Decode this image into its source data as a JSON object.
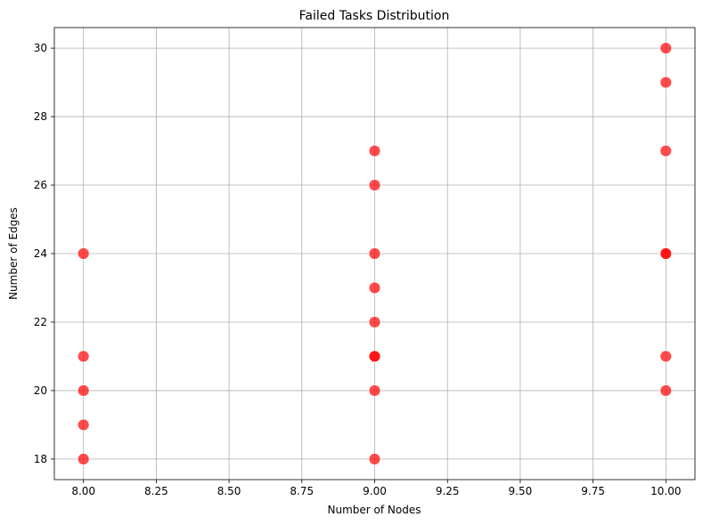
{
  "chart_data": {
    "type": "scatter",
    "title": "Failed Tasks Distribution",
    "xlabel": "Number of Nodes",
    "ylabel": "Number of Edges",
    "xlim": [
      7.9,
      10.1
    ],
    "ylim": [
      17.4,
      30.6
    ],
    "xticks": [
      8.0,
      8.25,
      8.5,
      8.75,
      9.0,
      9.25,
      9.5,
      9.75,
      10.0
    ],
    "xtick_labels": [
      "8.00",
      "8.25",
      "8.50",
      "8.75",
      "9.00",
      "9.25",
      "9.50",
      "9.75",
      "10.00"
    ],
    "yticks": [
      18,
      20,
      22,
      24,
      26,
      28,
      30
    ],
    "ytick_labels": [
      "18",
      "20",
      "22",
      "24",
      "26",
      "28",
      "30"
    ],
    "grid": true,
    "marker_color": "#ff0000",
    "points": [
      {
        "x": 8,
        "y": 18
      },
      {
        "x": 8,
        "y": 19
      },
      {
        "x": 8,
        "y": 20
      },
      {
        "x": 8,
        "y": 21
      },
      {
        "x": 8,
        "y": 24
      },
      {
        "x": 9,
        "y": 18
      },
      {
        "x": 9,
        "y": 20
      },
      {
        "x": 9,
        "y": 21
      },
      {
        "x": 9,
        "y": 21
      },
      {
        "x": 9,
        "y": 22
      },
      {
        "x": 9,
        "y": 23
      },
      {
        "x": 9,
        "y": 24
      },
      {
        "x": 9,
        "y": 26
      },
      {
        "x": 9,
        "y": 27
      },
      {
        "x": 10,
        "y": 20
      },
      {
        "x": 10,
        "y": 21
      },
      {
        "x": 10,
        "y": 24
      },
      {
        "x": 10,
        "y": 24
      },
      {
        "x": 10,
        "y": 27
      },
      {
        "x": 10,
        "y": 29
      },
      {
        "x": 10,
        "y": 30
      }
    ]
  }
}
